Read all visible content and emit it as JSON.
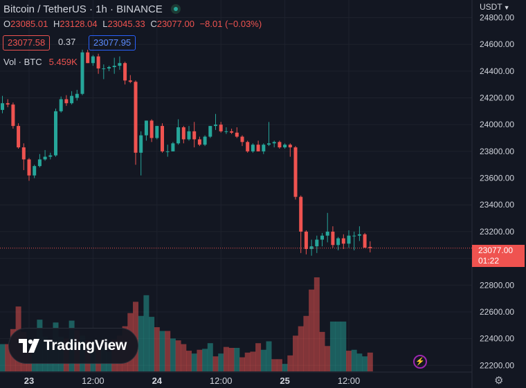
{
  "header": {
    "title": "Bitcoin / TetherUS · 1h · BINANCE",
    "ohlc": [
      {
        "key": "O",
        "value": "23085.01"
      },
      {
        "key": "H",
        "value": "23128.04"
      },
      {
        "key": "L",
        "value": "23045.33"
      },
      {
        "key": "C",
        "value": "23077.00"
      }
    ],
    "change": "−8.01 (−0.03%)",
    "bid": "23077.58",
    "spread": "0.37",
    "ask": "23077.95",
    "volume_label": "Vol · BTC",
    "volume_value": "5.459K"
  },
  "currency_label": "USDT",
  "last_price": {
    "value": "23077.00",
    "countdown": "01:22"
  },
  "logo_text": "TradingView",
  "colors": {
    "up": "#26a69a",
    "down": "#ef5350",
    "background": "#131722",
    "grid": "#1e222d",
    "axis_text": "#d1d4dc",
    "ask_border": "#2962ff"
  },
  "icons": {
    "status": "market-open-dot-icon",
    "bolt": "lightning-icon",
    "settings": "gear-icon",
    "currency_menu": "chevron-down-icon"
  },
  "chart_data": {
    "type": "candlestick",
    "y_ticks": [
      22200,
      22400,
      22600,
      22800,
      23000,
      23200,
      23400,
      23600,
      23800,
      24000,
      24200,
      24400,
      24600,
      24800
    ],
    "y_tick_labels": [
      "22200.00",
      "22400.00",
      "22600.00",
      "22800.00",
      "23000.00",
      "23200.00",
      "23400.00",
      "23600.00",
      "23800.00",
      "24000.00",
      "24200.00",
      "24400.00",
      "24600.00",
      "24800.00"
    ],
    "ylim": [
      22155,
      24880
    ],
    "x_ticks": [
      {
        "hour": 0,
        "label": "23"
      },
      {
        "hour": 12,
        "label": "12:00"
      },
      {
        "hour": 24,
        "label": "24"
      },
      {
        "hour": 36,
        "label": "12:00"
      },
      {
        "hour": 48,
        "label": "25"
      },
      {
        "hour": 60,
        "label": "12:00"
      }
    ],
    "first_hour": -5,
    "candles": [
      [
        24110,
        24215,
        24085,
        24160
      ],
      [
        24160,
        24190,
        24130,
        24150
      ],
      [
        24150,
        24165,
        23970,
        23990
      ],
      [
        23990,
        24010,
        23820,
        23830
      ],
      [
        23830,
        23860,
        23660,
        23740
      ],
      [
        23740,
        23750,
        23580,
        23620
      ],
      [
        23620,
        23700,
        23600,
        23690
      ],
      [
        23690,
        23780,
        23680,
        23740
      ],
      [
        23740,
        23810,
        23730,
        23760
      ],
      [
        23760,
        23790,
        23740,
        23770
      ],
      [
        23770,
        24120,
        23760,
        24100
      ],
      [
        24100,
        24210,
        24090,
        24190
      ],
      [
        24190,
        24220,
        24140,
        24160
      ],
      [
        24160,
        24250,
        24150,
        24215
      ],
      [
        24200,
        24260,
        24180,
        24230
      ],
      [
        24230,
        24560,
        24220,
        24540
      ],
      [
        24540,
        24560,
        24460,
        24460
      ],
      [
        24460,
        24520,
        24440,
        24510
      ],
      [
        24510,
        24530,
        24380,
        24420
      ],
      [
        24420,
        24450,
        24340,
        24420
      ],
      [
        24420,
        24440,
        24400,
        24430
      ],
      [
        24430,
        24500,
        24380,
        24440
      ],
      [
        24440,
        24510,
        24410,
        24460
      ],
      [
        24460,
        24470,
        24300,
        24330
      ],
      [
        24330,
        24370,
        24310,
        24320
      ],
      [
        24320,
        24330,
        23700,
        23790
      ],
      [
        23790,
        23950,
        23620,
        23920
      ],
      [
        23920,
        24030,
        23880,
        24030
      ],
      [
        24030,
        24040,
        23870,
        23900
      ],
      [
        23900,
        23990,
        23890,
        23990
      ],
      [
        23990,
        24010,
        23790,
        23800
      ],
      [
        23800,
        23850,
        23760,
        23800
      ],
      [
        23800,
        23870,
        23800,
        23860
      ],
      [
        23860,
        24040,
        23850,
        23980
      ],
      [
        23980,
        23990,
        23860,
        23890
      ],
      [
        23890,
        23990,
        23880,
        23950
      ],
      [
        23950,
        24020,
        23830,
        23890
      ],
      [
        23890,
        23910,
        23840,
        23850
      ],
      [
        23850,
        23920,
        23840,
        23910
      ],
      [
        23910,
        23990,
        23900,
        23990
      ],
      [
        23990,
        24080,
        23960,
        24000
      ],
      [
        24000,
        24020,
        23940,
        23950
      ],
      [
        23950,
        23980,
        23930,
        23950
      ],
      [
        23950,
        23970,
        23930,
        23940
      ],
      [
        23940,
        23980,
        23900,
        23910
      ],
      [
        23910,
        23920,
        23840,
        23870
      ],
      [
        23870,
        23880,
        23790,
        23800
      ],
      [
        23800,
        23860,
        23790,
        23850
      ],
      [
        23850,
        23880,
        23800,
        23800
      ],
      [
        23800,
        23860,
        23780,
        23850
      ],
      [
        23850,
        24020,
        23840,
        23860
      ],
      [
        23860,
        23880,
        23830,
        23870
      ],
      [
        23870,
        23880,
        23820,
        23830
      ],
      [
        23830,
        23860,
        23820,
        23850
      ],
      [
        23850,
        23860,
        23760,
        23830
      ],
      [
        23830,
        23840,
        23440,
        23460
      ],
      [
        23460,
        23470,
        23040,
        23200
      ],
      [
        23200,
        23210,
        23030,
        23070
      ],
      [
        23070,
        23140,
        23020,
        23090
      ],
      [
        23090,
        23170,
        23040,
        23140
      ],
      [
        23140,
        23190,
        23090,
        23170
      ],
      [
        23170,
        23340,
        23120,
        23200
      ],
      [
        23200,
        23240,
        23080,
        23100
      ],
      [
        23100,
        23160,
        23060,
        23150
      ],
      [
        23150,
        23180,
        23070,
        23110
      ],
      [
        23110,
        23210,
        23080,
        23170
      ],
      [
        23170,
        23200,
        23060,
        23170
      ],
      [
        23170,
        23240,
        23130,
        23180
      ],
      [
        23180,
        23190,
        23080,
        23080
      ],
      [
        23085,
        23128,
        23045,
        23077
      ]
    ],
    "volume": [
      {
        "value": 0.29,
        "up": true
      },
      {
        "value": 0.29,
        "up": false
      },
      {
        "value": 0.45,
        "up": false
      },
      {
        "value": 0.69,
        "up": false
      },
      {
        "value": 0.42,
        "up": false
      },
      {
        "value": 0.22,
        "up": false
      },
      {
        "value": 0.35,
        "up": true
      },
      {
        "value": 0.55,
        "up": true
      },
      {
        "value": 0.37,
        "up": true
      },
      {
        "value": 0.33,
        "up": true
      },
      {
        "value": 0.52,
        "up": true
      },
      {
        "value": 0.37,
        "up": true
      },
      {
        "value": 0.35,
        "up": false
      },
      {
        "value": 0.54,
        "up": true
      },
      {
        "value": 0.44,
        "up": false
      },
      {
        "value": 0.38,
        "up": true
      },
      {
        "value": 0.33,
        "up": false
      },
      {
        "value": 0.27,
        "up": true
      },
      {
        "value": 0.27,
        "up": false
      },
      {
        "value": 0.25,
        "up": true
      },
      {
        "value": 0.21,
        "up": true
      },
      {
        "value": 0.34,
        "up": false
      },
      {
        "value": 0.38,
        "up": false
      },
      {
        "value": 0.48,
        "up": false
      },
      {
        "value": 0.62,
        "up": false
      },
      {
        "value": 0.74,
        "up": false
      },
      {
        "value": 0.59,
        "up": true
      },
      {
        "value": 0.81,
        "up": true
      },
      {
        "value": 0.58,
        "up": true
      },
      {
        "value": 0.47,
        "up": false
      },
      {
        "value": 0.43,
        "up": true
      },
      {
        "value": 0.43,
        "up": false
      },
      {
        "value": 0.35,
        "up": true
      },
      {
        "value": 0.33,
        "up": false
      },
      {
        "value": 0.29,
        "up": false
      },
      {
        "value": 0.22,
        "up": false
      },
      {
        "value": 0.19,
        "up": true
      },
      {
        "value": 0.23,
        "up": false
      },
      {
        "value": 0.24,
        "up": true
      },
      {
        "value": 0.3,
        "up": true
      },
      {
        "value": 0.16,
        "up": false
      },
      {
        "value": 0.19,
        "up": true
      },
      {
        "value": 0.26,
        "up": false
      },
      {
        "value": 0.25,
        "up": false
      },
      {
        "value": 0.25,
        "up": true
      },
      {
        "value": 0.15,
        "up": false
      },
      {
        "value": 0.2,
        "up": false
      },
      {
        "value": 0.21,
        "up": false
      },
      {
        "value": 0.3,
        "up": false
      },
      {
        "value": 0.23,
        "up": true
      },
      {
        "value": 0.32,
        "up": true
      },
      {
        "value": 0.13,
        "up": false
      },
      {
        "value": 0.13,
        "up": false
      },
      {
        "value": 0.08,
        "up": true
      },
      {
        "value": 0.17,
        "up": false
      },
      {
        "value": 0.38,
        "up": false
      },
      {
        "value": 0.48,
        "up": false
      },
      {
        "value": 0.59,
        "up": false
      },
      {
        "value": 0.87,
        "up": false
      },
      {
        "value": 1.0,
        "up": false
      },
      {
        "value": 0.42,
        "up": false
      },
      {
        "value": 0.27,
        "up": false
      },
      {
        "value": 0.53,
        "up": true
      },
      {
        "value": 0.53,
        "up": true
      },
      {
        "value": 0.53,
        "up": true
      },
      {
        "value": 0.22,
        "up": false
      },
      {
        "value": 0.23,
        "up": true
      },
      {
        "value": 0.19,
        "up": true
      },
      {
        "value": 0.16,
        "up": true
      },
      {
        "value": 0.2,
        "up": false
      }
    ]
  }
}
